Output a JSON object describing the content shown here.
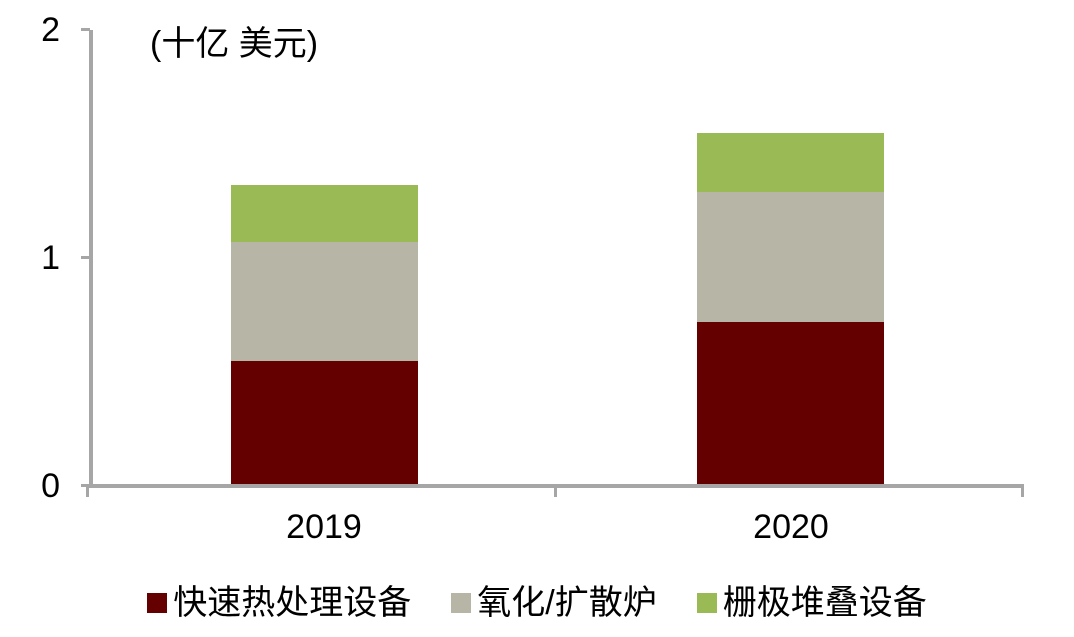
{
  "chart_data": {
    "type": "bar",
    "stacked": true,
    "title": "",
    "ylabel": "(十亿 美元)",
    "xlabel": "",
    "categories": [
      "2019",
      "2020"
    ],
    "series": [
      {
        "name": "快速热处理设备",
        "color": "#650000",
        "values": [
          0.55,
          0.72
        ]
      },
      {
        "name": "氧化/扩散炉",
        "color": "#B7B6A6",
        "values": [
          0.52,
          0.57
        ]
      },
      {
        "name": "栅极堆叠设备",
        "color": "#9ABA56",
        "values": [
          0.25,
          0.26
        ]
      }
    ],
    "totals": [
      1.31,
      1.55
    ],
    "ylim": [
      0,
      2
    ],
    "yticks": [
      "0",
      "1",
      "2"
    ],
    "grid": false,
    "legend_position": "bottom"
  },
  "colors": {
    "axis": "#A6A6A6",
    "text": "#000000",
    "background": "#FFFFFF"
  }
}
